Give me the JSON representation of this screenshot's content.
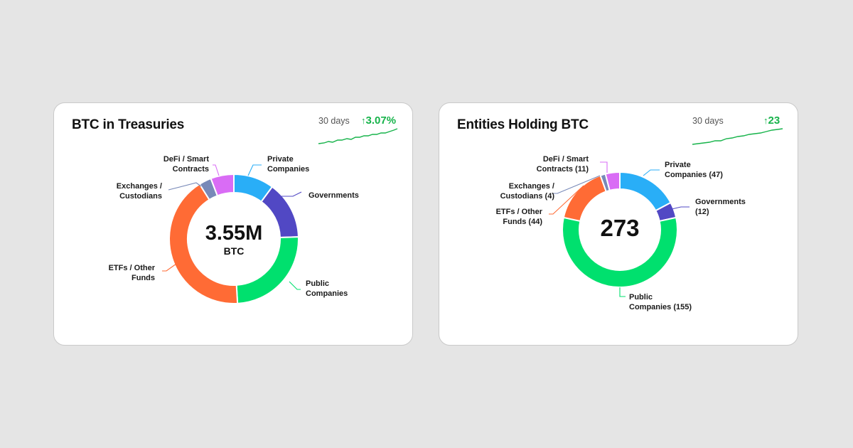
{
  "colors": {
    "public": "#00e06e",
    "etfs": "#ff6b35",
    "exchanges": "#7889b8",
    "defi": "#d96cf5",
    "private": "#29aef7",
    "governments": "#5148c4",
    "trend_up": "#16b34a"
  },
  "cards": [
    {
      "title": "BTC in Treasuries",
      "trend": {
        "period": "30 days",
        "arrow": "↑",
        "value": "3.07%"
      },
      "center": {
        "value": "3.55M",
        "unit": "BTC"
      },
      "chart_data": {
        "type": "pie",
        "variant": "donut",
        "title": "BTC in Treasuries",
        "categories": [
          "Private Companies",
          "Governments",
          "Public Companies",
          "ETFs / Other Funds",
          "Exchanges / Custodians",
          "DeFi / Smart Contracts"
        ],
        "values": [
          10.1,
          14.4,
          24.6,
          42.0,
          3.1,
          5.8
        ],
        "unit": "% of total BTC",
        "total_label": "3.55M BTC",
        "labels": [
          {
            "line1": "Private",
            "line2": "Companies"
          },
          {
            "line1": "Governments",
            "line2": ""
          },
          {
            "line1": "Public",
            "line2": "Companies"
          },
          {
            "line1": "ETFs / Other",
            "line2": "Funds"
          },
          {
            "line1": "Exchanges /",
            "line2": "Custodians"
          },
          {
            "line1": "DeFi / Smart",
            "line2": "Contracts"
          }
        ]
      }
    },
    {
      "title": "Entities Holding BTC",
      "trend": {
        "period": "30 days",
        "arrow": "↑",
        "value": "23"
      },
      "center": {
        "value": "273",
        "unit": ""
      },
      "chart_data": {
        "type": "pie",
        "variant": "donut",
        "title": "Entities Holding BTC",
        "categories": [
          "Private Companies",
          "Governments",
          "Public Companies",
          "ETFs / Other Funds",
          "Exchanges / Custodians",
          "DeFi / Smart Contracts"
        ],
        "values": [
          47,
          12,
          155,
          44,
          4,
          11
        ],
        "unit": "entities",
        "total_label": "273",
        "labels": [
          {
            "line1": "Private",
            "line2": "Companies (47)"
          },
          {
            "line1": "Governments",
            "line2": "(12)"
          },
          {
            "line1": "Public",
            "line2": "Companies (155)"
          },
          {
            "line1": "ETFs / Other",
            "line2": "Funds (44)"
          },
          {
            "line1": "Exchanges /",
            "line2": "Custodians (4)"
          },
          {
            "line1": "DeFi / Smart",
            "line2": "Contracts (11)"
          }
        ]
      }
    }
  ]
}
